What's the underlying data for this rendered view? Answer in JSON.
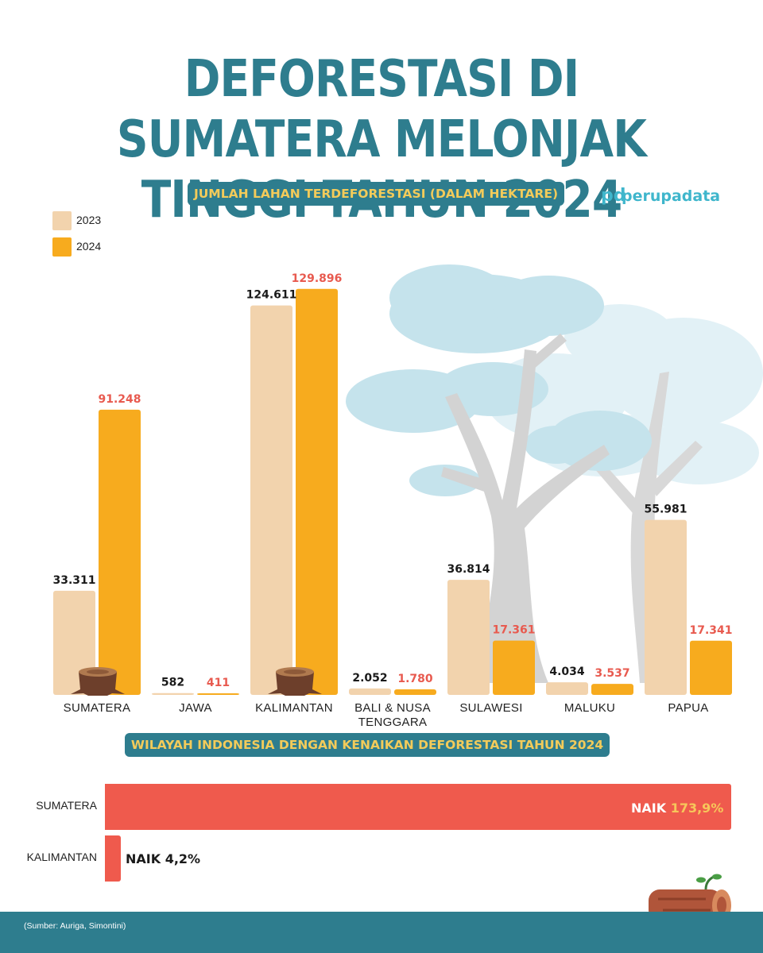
{
  "title": "DEFORESTASI DI SUMATERA MELONJAK TINGGI TAHUN 2024",
  "brand": {
    "mark": "pd",
    "name": "perupadata"
  },
  "colors": {
    "primary": "#2e7d8e",
    "accent_text": "#f3cb5a",
    "bar_2023": "#f2d3ad",
    "bar_2024": "#f7ab1e",
    "increase": "#ef5a4d",
    "value_2024": "#e85a4f",
    "tree_canopy": "#c5e3ec",
    "tree_trunk": "#d3d3d3"
  },
  "chart_data": [
    {
      "type": "bar",
      "title": "JUMLAH LAHAN TERDEFORESTASI (DALAM HEKTARE)",
      "categories": [
        "SUMATERA",
        "JAWA",
        "KALIMANTAN",
        "BALI & NUSA TENGGARA",
        "SULAWESI",
        "MALUKU",
        "PAPUA"
      ],
      "series": [
        {
          "name": "2023",
          "values": [
            33311,
            582,
            124611,
            2052,
            36814,
            4034,
            55981
          ],
          "labels": [
            "33.311",
            "582",
            "124.611",
            "2.052",
            "36.814",
            "4.034",
            "55.981"
          ]
        },
        {
          "name": "2024",
          "values": [
            91248,
            411,
            129896,
            1780,
            17361,
            3537,
            17341
          ],
          "labels": [
            "91.248",
            "411",
            "129.896",
            "1.780",
            "17.361",
            "3.537",
            "17.341"
          ]
        }
      ],
      "ylim": [
        0,
        140000
      ],
      "grid": false,
      "legend": "top-left"
    },
    {
      "type": "bar",
      "orientation": "horizontal",
      "title": "WILAYAH INDONESIA DENGAN KENAIKAN DEFORESTASI TAHUN 2024",
      "categories": [
        "SUMATERA",
        "KALIMANTAN"
      ],
      "values": [
        173.9,
        4.2
      ],
      "prefix": "NAIK",
      "value_labels": [
        "173,9%",
        "4,2%"
      ]
    }
  ],
  "source": "(Sumber: Auriga, Simontini)"
}
